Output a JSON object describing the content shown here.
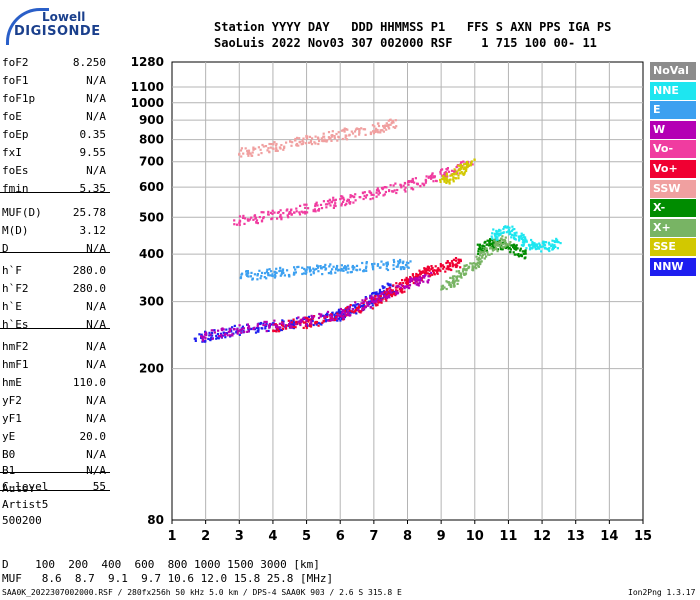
{
  "logo": {
    "line1": "Lowell",
    "line2": "DIGISONDE"
  },
  "header": {
    "row1": "Station YYYY DAY   DDD HHMMSS P1   FFS S AXN PPS IGA PS",
    "row2": "SaoLuis 2022 Nov03 307 002000 RSF    1 715 100 00- 11"
  },
  "params": [
    {
      "k": "foF2",
      "v": "8.250"
    },
    {
      "k": "foF1",
      "v": "N/A"
    },
    {
      "k": "foF1p",
      "v": "N/A"
    },
    {
      "k": "foE",
      "v": "N/A"
    },
    {
      "k": "foEp",
      "v": "0.35"
    },
    {
      "k": "fxI",
      "v": "9.55"
    },
    {
      "k": "foEs",
      "v": "N/A"
    },
    {
      "k": "fmin",
      "v": "5.35"
    },
    {
      "k": "MUF(D)",
      "v": "25.78"
    },
    {
      "k": "M(D)",
      "v": "3.12"
    },
    {
      "k": "D",
      "v": "N/A"
    },
    {
      "k": "h`F",
      "v": "280.0"
    },
    {
      "k": "h`F2",
      "v": "280.0"
    },
    {
      "k": "h`E",
      "v": "N/A"
    },
    {
      "k": "h`Es",
      "v": "N/A"
    },
    {
      "k": "hmF2",
      "v": "N/A"
    },
    {
      "k": "hmF1",
      "v": "N/A"
    },
    {
      "k": "hmE",
      "v": "110.0"
    },
    {
      "k": "yF2",
      "v": "N/A"
    },
    {
      "k": "yF1",
      "v": "N/A"
    },
    {
      "k": "yE",
      "v": "20.0"
    },
    {
      "k": "B0",
      "v": "N/A"
    },
    {
      "k": "B1",
      "v": "N/A"
    },
    {
      "k": "C-level",
      "v": "55"
    }
  ],
  "auto": [
    "Auto:",
    "Artist5",
    "500200"
  ],
  "legend": [
    {
      "label": "NoVal",
      "color": "#8c8c8c"
    },
    {
      "label": "NNE",
      "color": "#1ee6f0"
    },
    {
      "label": "E",
      "color": "#3ca0f0"
    },
    {
      "label": "W",
      "color": "#b400b4"
    },
    {
      "label": "Vo-",
      "color": "#f03ca0"
    },
    {
      "label": "Vo+",
      "color": "#f00032"
    },
    {
      "label": "SSW",
      "color": "#f0a0a0"
    },
    {
      "label": "X-",
      "color": "#008c00"
    },
    {
      "label": "X+",
      "color": "#78b464"
    },
    {
      "label": "SSE",
      "color": "#d2c800"
    },
    {
      "label": "NNW",
      "color": "#1e1ef0"
    }
  ],
  "dmuf": {
    "d_row": "D    100  200  400  600  800 1000 1500 3000 [km]",
    "muf_row": "MUF   8.6  8.7  9.1  9.7 10.6 12.0 15.8 25.8 [MHz]"
  },
  "footer": {
    "left": "SAA0K_2022307002000.RSF / 280fx256h 50 kHz 5.0 km / DPS-4 SAA0K 903 / 2.6 S 315.8 E",
    "right": "Ion2Png 1.3.17"
  },
  "chart_data": {
    "type": "scatter",
    "title": "",
    "xlabel": "",
    "ylabel": "",
    "xlim": [
      1,
      15
    ],
    "x_ticks": [
      1,
      2,
      3,
      4,
      5,
      6,
      7,
      8,
      9,
      10,
      11,
      12,
      13,
      14,
      15
    ],
    "ylim": [
      80,
      1280
    ],
    "y_scale": "log",
    "y_ticks": [
      80,
      200,
      300,
      400,
      500,
      600,
      700,
      800,
      900,
      1000,
      1100,
      1280
    ],
    "grid": true,
    "series": [
      {
        "name": "NNW",
        "color": "#1e1ef0",
        "trace": [
          [
            1.7,
            240
          ],
          [
            2.5,
            250
          ],
          [
            3.5,
            258
          ],
          [
            4.5,
            264
          ],
          [
            5.5,
            272
          ],
          [
            6,
            280
          ],
          [
            6.5,
            290
          ],
          [
            7,
            310
          ],
          [
            7.5,
            330
          ]
        ]
      },
      {
        "name": "Vo+",
        "color": "#f00032",
        "trace": [
          [
            4,
            258
          ],
          [
            5,
            266
          ],
          [
            6,
            280
          ],
          [
            7,
            300
          ],
          [
            7.5,
            320
          ],
          [
            8,
            340
          ],
          [
            8.5,
            360
          ],
          [
            9,
            370
          ],
          [
            9.5,
            385
          ]
        ]
      },
      {
        "name": "W",
        "color": "#b400b4",
        "trace": [
          [
            1.8,
            244
          ],
          [
            3,
            255
          ],
          [
            4.5,
            265
          ],
          [
            6,
            280
          ],
          [
            7,
            305
          ],
          [
            8,
            335
          ],
          [
            8.6,
            350
          ]
        ]
      },
      {
        "name": "Vo-",
        "color": "#f03ca0",
        "trace": [
          [
            2.8,
            490
          ],
          [
            4,
            510
          ],
          [
            5,
            530
          ],
          [
            6,
            555
          ],
          [
            7,
            580
          ],
          [
            8,
            610
          ],
          [
            9,
            650
          ],
          [
            9.8,
            690
          ]
        ]
      },
      {
        "name": "X-",
        "color": "#008c00",
        "trace": [
          [
            10,
            410
          ],
          [
            10.5,
            430
          ],
          [
            11,
            420
          ],
          [
            11.5,
            400
          ]
        ]
      },
      {
        "name": "X+",
        "color": "#78b464",
        "trace": [
          [
            9,
            330
          ],
          [
            9.5,
            350
          ],
          [
            10,
            380
          ],
          [
            10.5,
            420
          ],
          [
            11,
            440
          ]
        ]
      },
      {
        "name": "SSW",
        "color": "#f0a0a0",
        "trace": [
          [
            3,
            740
          ],
          [
            4,
            770
          ],
          [
            5,
            800
          ],
          [
            6,
            830
          ],
          [
            7,
            860
          ],
          [
            7.6,
            890
          ]
        ]
      },
      {
        "name": "NNE",
        "color": "#1ee6f0",
        "trace": [
          [
            10.5,
            450
          ],
          [
            11,
            470
          ],
          [
            11.5,
            430
          ],
          [
            12,
            420
          ],
          [
            12.4,
            430
          ]
        ]
      },
      {
        "name": "SSE",
        "color": "#d2c800",
        "trace": [
          [
            9,
            620
          ],
          [
            9.5,
            660
          ],
          [
            9.9,
            700
          ]
        ]
      },
      {
        "name": "E",
        "color": "#3ca0f0",
        "trace": [
          [
            3,
            350
          ],
          [
            4,
            360
          ],
          [
            5,
            365
          ],
          [
            6,
            370
          ],
          [
            7,
            375
          ],
          [
            8,
            380
          ]
        ]
      }
    ]
  }
}
